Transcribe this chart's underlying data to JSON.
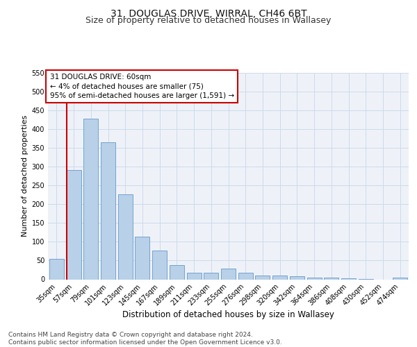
{
  "title1": "31, DOUGLAS DRIVE, WIRRAL, CH46 6BT",
  "title2": "Size of property relative to detached houses in Wallasey",
  "xlabel": "Distribution of detached houses by size in Wallasey",
  "ylabel": "Number of detached properties",
  "bar_labels": [
    "35sqm",
    "57sqm",
    "79sqm",
    "101sqm",
    "123sqm",
    "145sqm",
    "167sqm",
    "189sqm",
    "211sqm",
    "233sqm",
    "255sqm",
    "276sqm",
    "298sqm",
    "320sqm",
    "342sqm",
    "364sqm",
    "386sqm",
    "408sqm",
    "430sqm",
    "452sqm",
    "474sqm"
  ],
  "bar_values": [
    55,
    291,
    428,
    365,
    226,
    113,
    76,
    38,
    17,
    17,
    29,
    17,
    11,
    10,
    8,
    4,
    5,
    2,
    1,
    0,
    5
  ],
  "bar_color": "#b8d0e8",
  "bar_edge_color": "#6699cc",
  "vline_color": "#cc0000",
  "annotation_text": "31 DOUGLAS DRIVE: 60sqm\n← 4% of detached houses are smaller (75)\n95% of semi-detached houses are larger (1,591) →",
  "annotation_box_color": "#ffffff",
  "annotation_box_edge": "#cc0000",
  "ylim": [
    0,
    550
  ],
  "yticks": [
    0,
    50,
    100,
    150,
    200,
    250,
    300,
    350,
    400,
    450,
    500,
    550
  ],
  "grid_color": "#ccdaeb",
  "bg_color": "#eef2f8",
  "footer_text": "Contains HM Land Registry data © Crown copyright and database right 2024.\nContains public sector information licensed under the Open Government Licence v3.0.",
  "title1_fontsize": 10,
  "title2_fontsize": 9,
  "xlabel_fontsize": 8.5,
  "ylabel_fontsize": 8,
  "tick_fontsize": 7,
  "annotation_fontsize": 7.5,
  "footer_fontsize": 6.5
}
